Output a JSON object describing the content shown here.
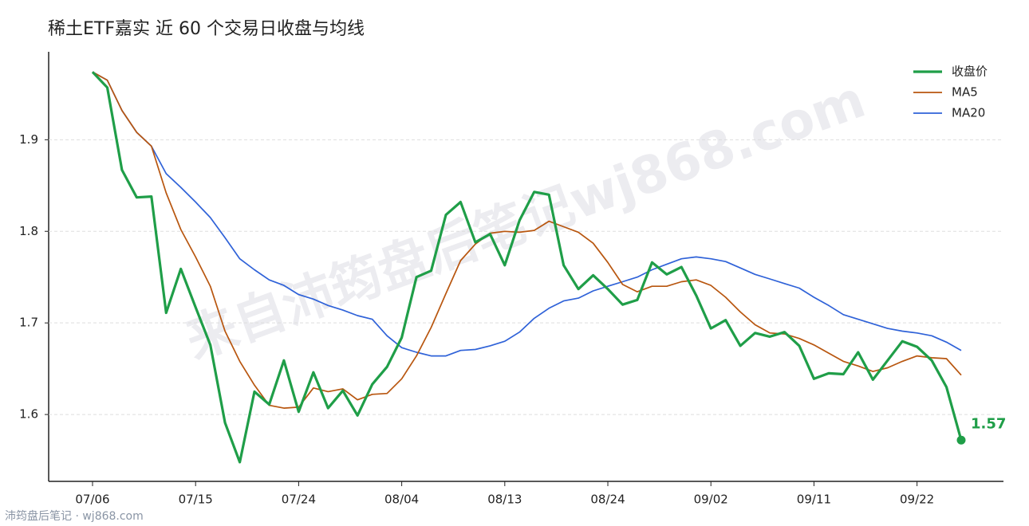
{
  "chart_data": {
    "type": "line",
    "title": "稀土ETF嘉实 近 60 个交易日收盘与均线",
    "watermark": "来自沛筠盘后笔记wj868.com",
    "footer": "沛筠盘后笔记 · wj868.com",
    "annotation": "1.57",
    "categories": [
      "07/06",
      null,
      null,
      null,
      null,
      null,
      null,
      "07/15",
      null,
      null,
      null,
      null,
      null,
      null,
      "07/24",
      null,
      null,
      null,
      null,
      null,
      null,
      "08/04",
      null,
      null,
      null,
      null,
      null,
      null,
      "08/13",
      null,
      null,
      null,
      null,
      null,
      null,
      "08/24",
      null,
      null,
      null,
      null,
      null,
      null,
      "09/02",
      null,
      null,
      null,
      null,
      null,
      null,
      "09/11",
      null,
      null,
      null,
      null,
      null,
      null,
      "09/22",
      null,
      null,
      null
    ],
    "series": [
      {
        "name": "收盘价",
        "color": "#1f9e48",
        "values": [
          1.974,
          1.957,
          1.867,
          1.837,
          1.838,
          1.711,
          1.759,
          1.717,
          1.676,
          1.591,
          1.548,
          1.625,
          1.611,
          1.659,
          1.603,
          1.646,
          1.607,
          1.626,
          1.599,
          1.633,
          1.652,
          1.684,
          1.75,
          1.757,
          1.818,
          1.832,
          1.788,
          1.797,
          1.763,
          1.812,
          1.843,
          1.84,
          1.763,
          1.737,
          1.752,
          1.737,
          1.72,
          1.725,
          1.766,
          1.753,
          1.761,
          1.73,
          1.694,
          1.703,
          1.675,
          1.689,
          1.685,
          1.69,
          1.675,
          1.639,
          1.645,
          1.644,
          1.668,
          1.638,
          1.659,
          1.68,
          1.674,
          1.659,
          1.63,
          1.572
        ]
      },
      {
        "name": "MA5",
        "color": "#b8560f",
        "values": [
          1.974,
          1.965,
          1.932,
          1.908,
          1.893,
          1.842,
          1.802,
          1.772,
          1.74,
          1.691,
          1.658,
          1.632,
          1.61,
          1.607,
          1.608,
          1.629,
          1.625,
          1.628,
          1.616,
          1.622,
          1.623,
          1.639,
          1.664,
          1.695,
          1.732,
          1.768,
          1.786,
          1.798,
          1.8,
          1.799,
          1.801,
          1.811,
          1.805,
          1.799,
          1.787,
          1.766,
          1.742,
          1.734,
          1.74,
          1.74,
          1.745,
          1.747,
          1.741,
          1.728,
          1.712,
          1.698,
          1.689,
          1.688,
          1.683,
          1.676,
          1.667,
          1.658,
          1.653,
          1.647,
          1.651,
          1.658,
          1.664,
          1.662,
          1.661,
          1.643
        ]
      },
      {
        "name": "MA20",
        "color": "#2f62d8",
        "values": [
          1.974,
          1.965,
          1.932,
          1.908,
          1.893,
          1.863,
          1.848,
          1.832,
          1.815,
          1.793,
          1.77,
          1.758,
          1.747,
          1.741,
          1.731,
          1.726,
          1.719,
          1.714,
          1.708,
          1.704,
          1.686,
          1.673,
          1.668,
          1.664,
          1.664,
          1.67,
          1.671,
          1.675,
          1.68,
          1.69,
          1.705,
          1.716,
          1.724,
          1.727,
          1.735,
          1.74,
          1.745,
          1.75,
          1.758,
          1.764,
          1.77,
          1.772,
          1.77,
          1.767,
          1.76,
          1.753,
          1.748,
          1.743,
          1.738,
          1.728,
          1.719,
          1.709,
          1.704,
          1.699,
          1.694,
          1.691,
          1.689,
          1.686,
          1.679,
          1.67
        ]
      }
    ],
    "ylim": [
      1.527,
      1.996
    ],
    "yticks": [
      1.6,
      1.7,
      1.8,
      1.9
    ],
    "grid": true,
    "legend": "top-right"
  }
}
